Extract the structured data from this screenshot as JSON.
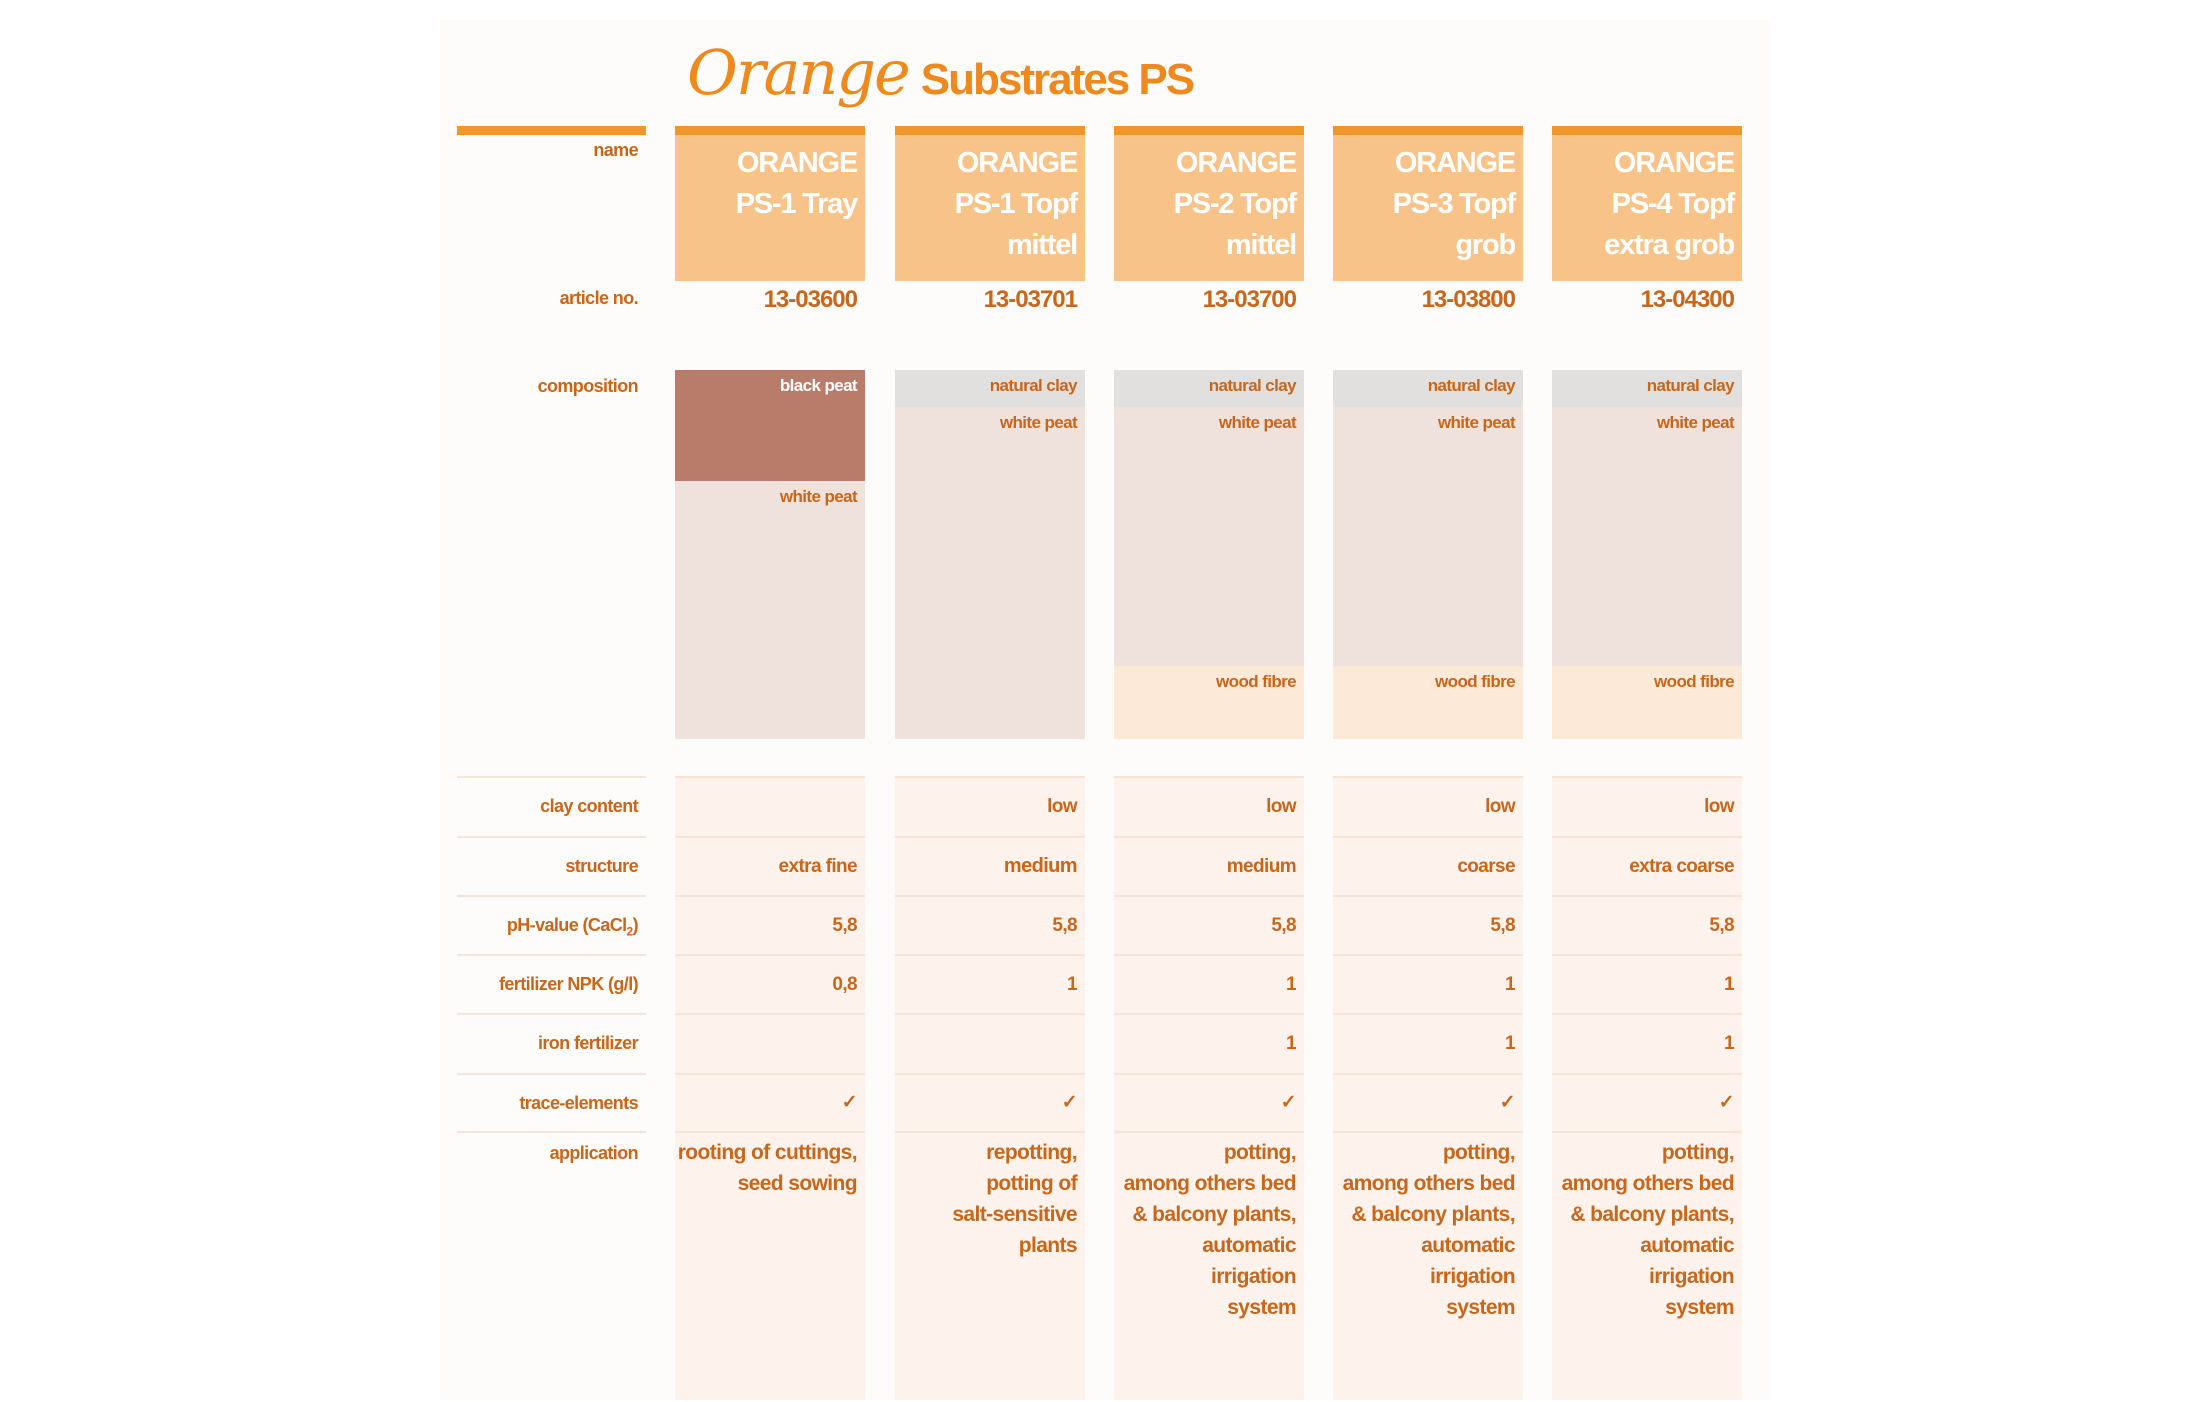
{
  "title": {
    "script": "Orange",
    "main": "Substrates PS"
  },
  "labels": {
    "name": "name",
    "article": "article no.",
    "composition": "composition",
    "clay": "clay content",
    "structure": "structure",
    "ph": {
      "pre": "pH-value  (CaCl",
      "sub": "2",
      "post": ")"
    },
    "npk": "fertilizer NPK (g/l)",
    "iron": "iron fertilizer",
    "trace": "trace-elements",
    "application": "application"
  },
  "colors": {
    "accent": "#f0962a",
    "header": "#f8c389",
    "text": "#c8661a",
    "black_peat": "#b97c6b",
    "white_peat": "#efe2dd",
    "natural_clay": "#e2e0de",
    "wood_fibre": "#fde9d7"
  },
  "products": [
    {
      "name": "ORANGE\nPS-1 Tray",
      "article": "13-03600",
      "composition": [
        "black peat",
        "white peat"
      ],
      "clay": "",
      "structure": "extra fine",
      "ph": "5,8",
      "npk": "0,8",
      "iron": "",
      "trace": "✓",
      "application": "rooting of cuttings,\nseed sowing"
    },
    {
      "name": "ORANGE\nPS-1 Topf\nmittel",
      "article": "13-03701",
      "composition": [
        "natural clay",
        "white peat"
      ],
      "clay": "low",
      "structure": "medium",
      "ph": "5,8",
      "npk": "1",
      "iron": "",
      "trace": "✓",
      "application": "repotting,\npotting of\nsalt-sensitive\nplants"
    },
    {
      "name": "ORANGE\nPS-2 Topf\nmittel",
      "article": "13-03700",
      "composition": [
        "natural clay",
        "white peat",
        "wood fibre"
      ],
      "clay": "low",
      "structure": "medium",
      "ph": "5,8",
      "npk": "1",
      "iron": "1",
      "trace": "✓",
      "application": "potting,\namong others bed\n& balcony plants,\nautomatic irrigation\nsystem"
    },
    {
      "name": "ORANGE\nPS-3 Topf\ngrob",
      "article": "13-03800",
      "composition": [
        "natural clay",
        "white peat",
        "wood fibre"
      ],
      "clay": "low",
      "structure": "coarse",
      "ph": "5,8",
      "npk": "1",
      "iron": "1",
      "trace": "✓",
      "application": "potting,\namong others bed\n& balcony plants,\nautomatic irrigation\nsystem"
    },
    {
      "name": "ORANGE\nPS-4 Topf\nextra grob",
      "article": "13-04300",
      "composition": [
        "natural clay",
        "white peat",
        "wood fibre"
      ],
      "clay": "low",
      "structure": "extra coarse",
      "ph": "5,8",
      "npk": "1",
      "iron": "1",
      "trace": "✓",
      "application": "potting,\namong others bed\n& balcony plants,\nautomatic irrigation\nsystem"
    }
  ]
}
